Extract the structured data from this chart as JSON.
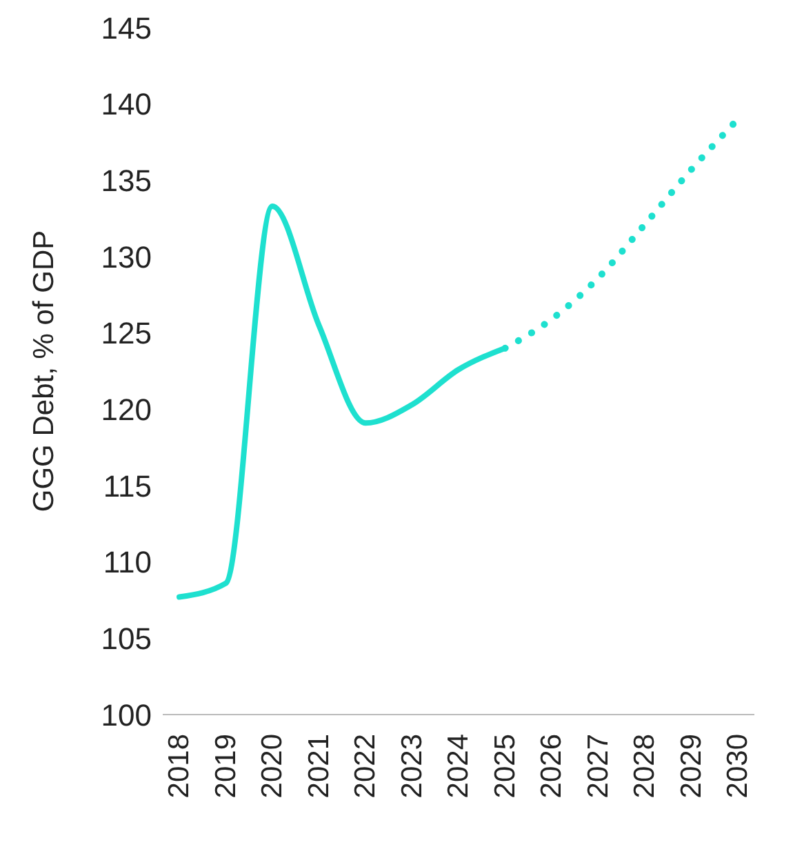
{
  "chart_data": {
    "type": "line",
    "ylabel": "GGG Debt, % of GDP",
    "categories": [
      "2018",
      "2019",
      "2020",
      "2021",
      "2022",
      "2023",
      "2024",
      "2025",
      "2026",
      "2027",
      "2028",
      "2029",
      "2030"
    ],
    "series": [
      {
        "color": "#1ee0cf",
        "line_style": "solid",
        "values": [
          107.7,
          108.6,
          133.3,
          125.5,
          119.1,
          120.3,
          122.6,
          124,
          null,
          null,
          null,
          null,
          null
        ]
      },
      {
        "color": "#1ee0cf",
        "line_style": "dotted",
        "values": [
          null,
          null,
          null,
          null,
          null,
          null,
          null,
          124,
          125.9,
          128.6,
          132.1,
          135.7,
          139
        ]
      }
    ],
    "ylim": [
      100,
      145
    ],
    "yticks": [
      100,
      105,
      110,
      115,
      120,
      125,
      130,
      135,
      140,
      145
    ],
    "marker": "none"
  }
}
